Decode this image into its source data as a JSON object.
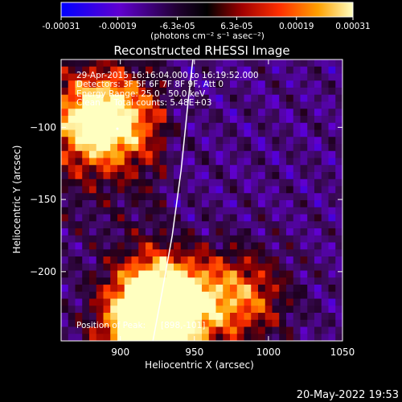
{
  "colorbar": {
    "tick_labels": [
      "-0.00031",
      "-0.00019",
      "-6.3e-05",
      "6.3e-05",
      "0.00019",
      "0.00031"
    ],
    "tick_values": [
      -0.00031,
      -0.00019,
      -6.3e-05,
      6.3e-05,
      0.00019,
      0.00031
    ],
    "range": [
      -0.00031,
      0.00031
    ],
    "units_label": "(photons cm⁻² s⁻¹ asec⁻²)",
    "colors": [
      "#0000ff",
      "#9a00cc",
      "#000000",
      "#b00000",
      "#ff3000",
      "#ffa000",
      "#ffff90"
    ]
  },
  "chart_data": {
    "type": "heatmap",
    "title": "Reconstructed RHESSI Image",
    "xlabel": "Heliocentric X (arcsec)",
    "ylabel": "Heliocentric Y (arcsec)",
    "xlim": [
      860,
      1050
    ],
    "ylim": [
      -248,
      -53
    ],
    "xticks": [
      900,
      950,
      1000,
      1050
    ],
    "xtick_labels": [
      "900",
      "950",
      "1000",
      "1050"
    ],
    "yticks": [
      -100,
      -150,
      -200
    ],
    "ytick_labels": [
      "−100",
      "−150",
      "−200"
    ],
    "limb_curve": [
      [
        922,
        -248
      ],
      [
        928,
        -215
      ],
      [
        935,
        -175
      ],
      [
        941,
        -130
      ],
      [
        946,
        -80
      ],
      [
        949,
        -53
      ]
    ],
    "hot_sources": [
      {
        "x": 888,
        "y": -95,
        "intensity": 0.00031
      },
      {
        "x": 928,
        "y": -218,
        "intensity": 0.00031
      },
      {
        "x": 920,
        "y": -243,
        "intensity": 0.00031
      },
      {
        "x": 980,
        "y": -218,
        "intensity": 0.00019
      }
    ],
    "annotations": [
      "29-Apr-2015 16:16:04.000 to 16:19:52.000",
      "Detectors: 3F 5F 6F 7F 8F 9F, Att 0",
      "Energy Range: 25.0 - 50.0 keV",
      "Clean     Total counts: 5.48E+03"
    ],
    "peak": {
      "label": "Position of Peak:",
      "value": "[898,-101]",
      "x": 898,
      "y": -101
    }
  },
  "footer": {
    "timestamp": "20-May-2022 19:53"
  }
}
